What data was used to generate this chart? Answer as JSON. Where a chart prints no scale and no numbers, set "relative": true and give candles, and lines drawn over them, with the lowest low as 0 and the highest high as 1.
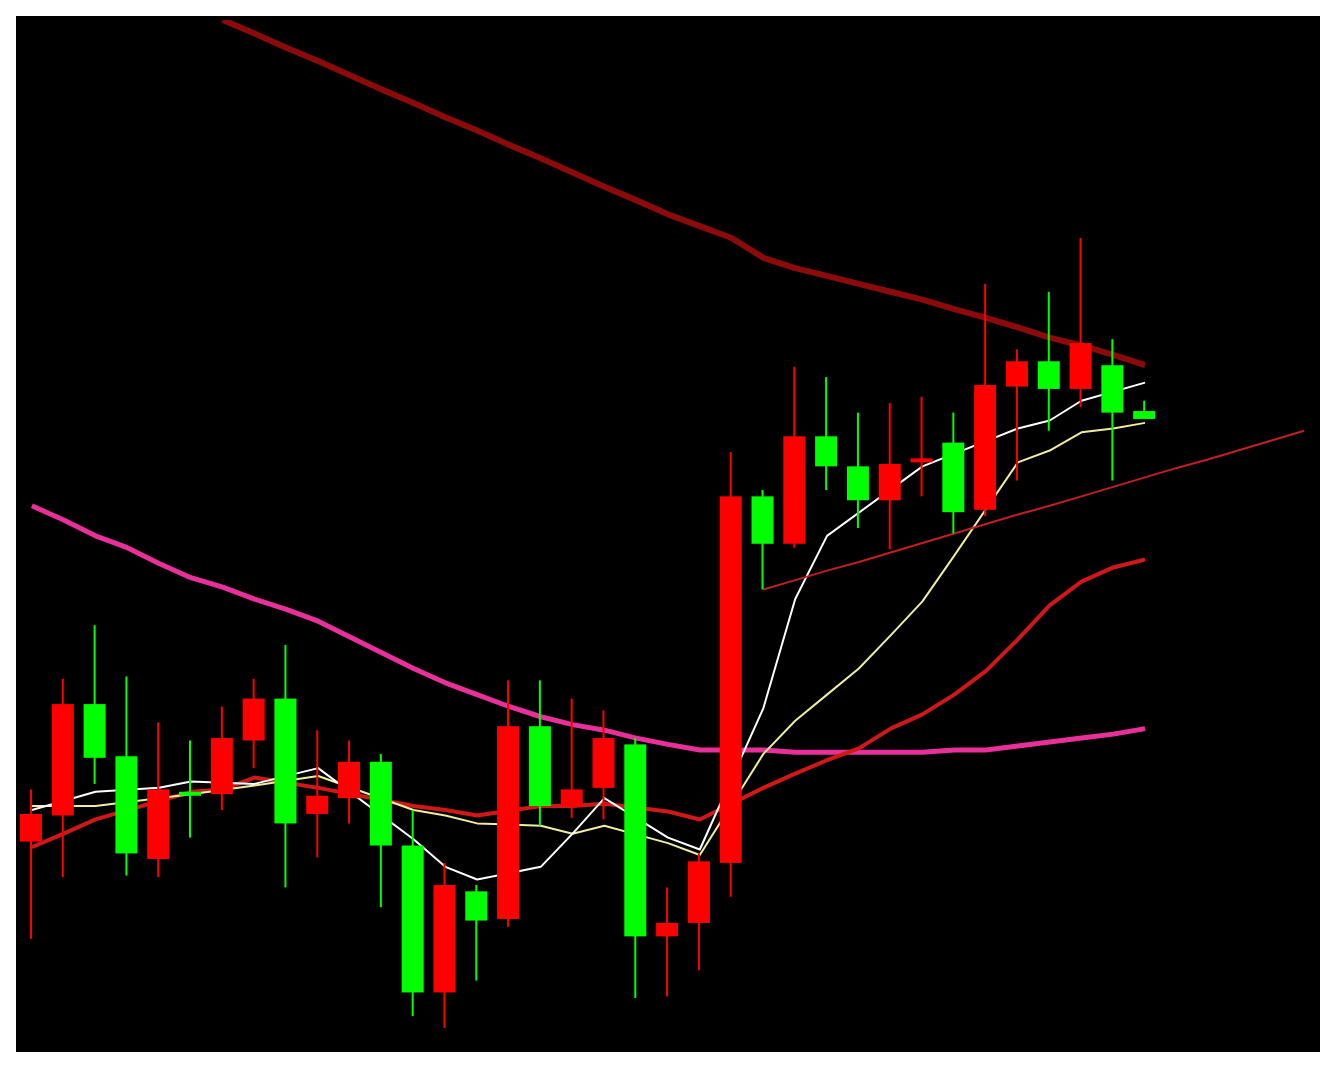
{
  "chart_data": {
    "type": "candlestick",
    "relative": true,
    "grid": false,
    "tick_labels": false,
    "marker": "none",
    "categories": [
      null,
      null,
      null,
      null,
      null,
      null,
      null,
      null,
      null,
      null,
      null,
      null,
      null,
      null,
      null,
      null,
      null,
      null,
      null,
      null,
      null,
      null,
      null,
      null,
      null,
      null,
      null,
      null,
      null,
      null,
      null,
      null,
      null,
      null,
      null,
      null,
      null,
      null,
      null,
      null,
      null
    ],
    "ohlc": [
      [
        0.236,
        0.302,
        0.113,
        0.271
      ],
      [
        0.269,
        0.442,
        0.191,
        0.41
      ],
      [
        0.41,
        0.51,
        0.309,
        0.342
      ],
      [
        0.344,
        0.445,
        0.193,
        0.221
      ],
      [
        0.214,
        0.387,
        0.191,
        0.302
      ],
      [
        0.299,
        0.364,
        0.241,
        0.294
      ],
      [
        0.296,
        0.407,
        0.276,
        0.367
      ],
      [
        0.364,
        0.442,
        0.329,
        0.417
      ],
      [
        0.417,
        0.485,
        0.178,
        0.259
      ],
      [
        0.271,
        0.377,
        0.216,
        0.294
      ],
      [
        0.291,
        0.364,
        0.259,
        0.337
      ],
      [
        0.337,
        0.347,
        0.153,
        0.231
      ],
      [
        0.231,
        0.276,
        0.015,
        0.045
      ],
      [
        0.045,
        0.209,
        0,
        0.181
      ],
      [
        0.173,
        0.181,
        0.06,
        0.136
      ],
      [
        0.138,
        0.44,
        0.128,
        0.382
      ],
      [
        0.382,
        0.44,
        0.256,
        0.281
      ],
      [
        0.281,
        0.417,
        0.266,
        0.302
      ],
      [
        0.304,
        0.402,
        0.264,
        0.367
      ],
      [
        0.359,
        0.367,
        0.038,
        0.116
      ],
      [
        0.116,
        0.178,
        0.04,
        0.133
      ],
      [
        0.133,
        0.221,
        0.073,
        0.211
      ],
      [
        0.209,
        0.729,
        0.166,
        0.673
      ],
      [
        0.673,
        0.681,
        0.555,
        0.613
      ],
      [
        0.613,
        0.837,
        0.608,
        0.749
      ],
      [
        0.749,
        0.824,
        0.681,
        0.711
      ],
      [
        0.711,
        0.779,
        0.633,
        0.668
      ],
      [
        0.668,
        0.791,
        0.606,
        0.714
      ],
      [
        0.716,
        0.799,
        0.673,
        0.721
      ],
      [
        0.741,
        0.779,
        0.626,
        0.653
      ],
      [
        0.656,
        0.942,
        0.648,
        0.814
      ],
      [
        0.812,
        0.859,
        0.693,
        0.844
      ],
      [
        0.844,
        0.932,
        0.756,
        0.809
      ],
      [
        0.809,
        1,
        0.786,
        0.867
      ],
      [
        0.839,
        0.872,
        0.693,
        0.779
      ],
      [
        0.781,
        0.794,
        0.771,
        0.771
      ],
      null,
      null,
      null,
      null,
      null
    ],
    "colors": [
      "#ff0000",
      "#ff0000",
      "#00ff00",
      "#00ff00",
      "#ff0000",
      "#00ff00",
      "#ff0000",
      "#ff0000",
      "#00ff00",
      "#ff0000",
      "#ff0000",
      "#00ff00",
      "#00ff00",
      "#ff0000",
      "#00ff00",
      "#ff0000",
      "#00ff00",
      "#ff0000",
      "#ff0000",
      "#00ff00",
      "#ff0000",
      "#ff0000",
      "#ff0000",
      "#00ff00",
      "#ff0000",
      "#00ff00",
      "#00ff00",
      "#ff0000",
      "#ff0000",
      "#00ff00",
      "#ff0000",
      "#ff0000",
      "#00ff00",
      "#ff0000",
      "#00ff00",
      "#00ff00",
      null,
      null,
      null,
      null,
      null
    ],
    "series": [
      {
        "type": "line",
        "color": "#e8309a",
        "values": [
          0.661,
          0.643,
          0.623,
          0.608,
          0.588,
          0.57,
          0.558,
          0.543,
          0.53,
          0.515,
          0.495,
          0.475,
          0.455,
          0.437,
          0.422,
          0.407,
          0.394,
          0.384,
          0.377,
          0.367,
          0.359,
          0.352,
          null,
          0.352,
          0.349,
          0.349,
          0.349,
          0.349,
          0.349,
          0.352,
          0.352,
          0.357,
          0.362,
          0.367,
          0.372,
          0.379,
          null,
          null,
          null,
          null,
          null
        ]
      },
      {
        "type": "line",
        "color": "#8b0a0a",
        "values": [
          null,
          null,
          null,
          null,
          null,
          null,
          1.276,
          1.259,
          1.241,
          1.224,
          1.206,
          1.188,
          1.171,
          1.153,
          1.136,
          1.118,
          1.101,
          1.083,
          1.065,
          1.048,
          1.03,
          1.015,
          1.0,
          0.975,
          0.962,
          0.952,
          0.942,
          0.932,
          0.922,
          0.91,
          0.899,
          0.887,
          0.874,
          0.864,
          0.852,
          0.839,
          null,
          null,
          null,
          null,
          null
        ]
      },
      {
        "type": "line",
        "color": "#d01818",
        "values": [
          0.229,
          0.246,
          0.264,
          null,
          null,
          0.299,
          0.302,
          0.317,
          null,
          0.304,
          null,
          null,
          0.281,
          0.276,
          0.269,
          null,
          0.281,
          0.281,
          0.284,
          null,
          0.274,
          0.264,
          null,
          0.304,
          0.322,
          0.339,
          0.354,
          0.379,
          0.397,
          0.422,
          0.452,
          0.492,
          0.535,
          0.565,
          0.583,
          0.593,
          null,
          null,
          null,
          null,
          null
        ]
      },
      {
        "type": "line",
        "color": "#f0eca0",
        "values": [
          0.281,
          null,
          0.281,
          null,
          null,
          0.296,
          null,
          0.307,
          null,
          0.319,
          null,
          null,
          0.276,
          0.269,
          0.259,
          null,
          0.256,
          0.246,
          0.256,
          null,
          0.234,
          0.219,
          null,
          0.347,
          0.389,
          0.422,
          0.455,
          0.497,
          0.54,
          0.598,
          null,
          0.716,
          0.731,
          0.754,
          0.759,
          0.766,
          null,
          null,
          null,
          null,
          null
        ]
      },
      {
        "type": "line",
        "color": "#ffffff",
        "values": [
          0.276,
          null,
          0.299,
          null,
          0.304,
          0.312,
          null,
          0.309,
          null,
          0.329,
          null,
          null,
          0.239,
          0.204,
          0.188,
          null,
          0.204,
          0.246,
          0.291,
          null,
          0.241,
          0.226,
          null,
          0.405,
          0.543,
          0.623,
          null,
          null,
          0.711,
          null,
          null,
          0.759,
          0.769,
          0.794,
          null,
          0.817,
          null,
          null,
          null,
          null,
          null
        ]
      },
      {
        "type": "line",
        "color": "#c02020",
        "values": [
          null,
          null,
          null,
          null,
          null,
          null,
          null,
          null,
          null,
          null,
          null,
          null,
          null,
          null,
          null,
          null,
          null,
          null,
          null,
          null,
          null,
          null,
          null,
          0.555,
          0.567,
          0.579,
          0.59,
          0.602,
          0.614,
          0.626,
          0.638,
          0.65,
          0.661,
          0.673,
          0.685,
          0.697,
          0.709,
          0.72,
          0.732,
          0.744,
          0.756
        ]
      }
    ]
  }
}
